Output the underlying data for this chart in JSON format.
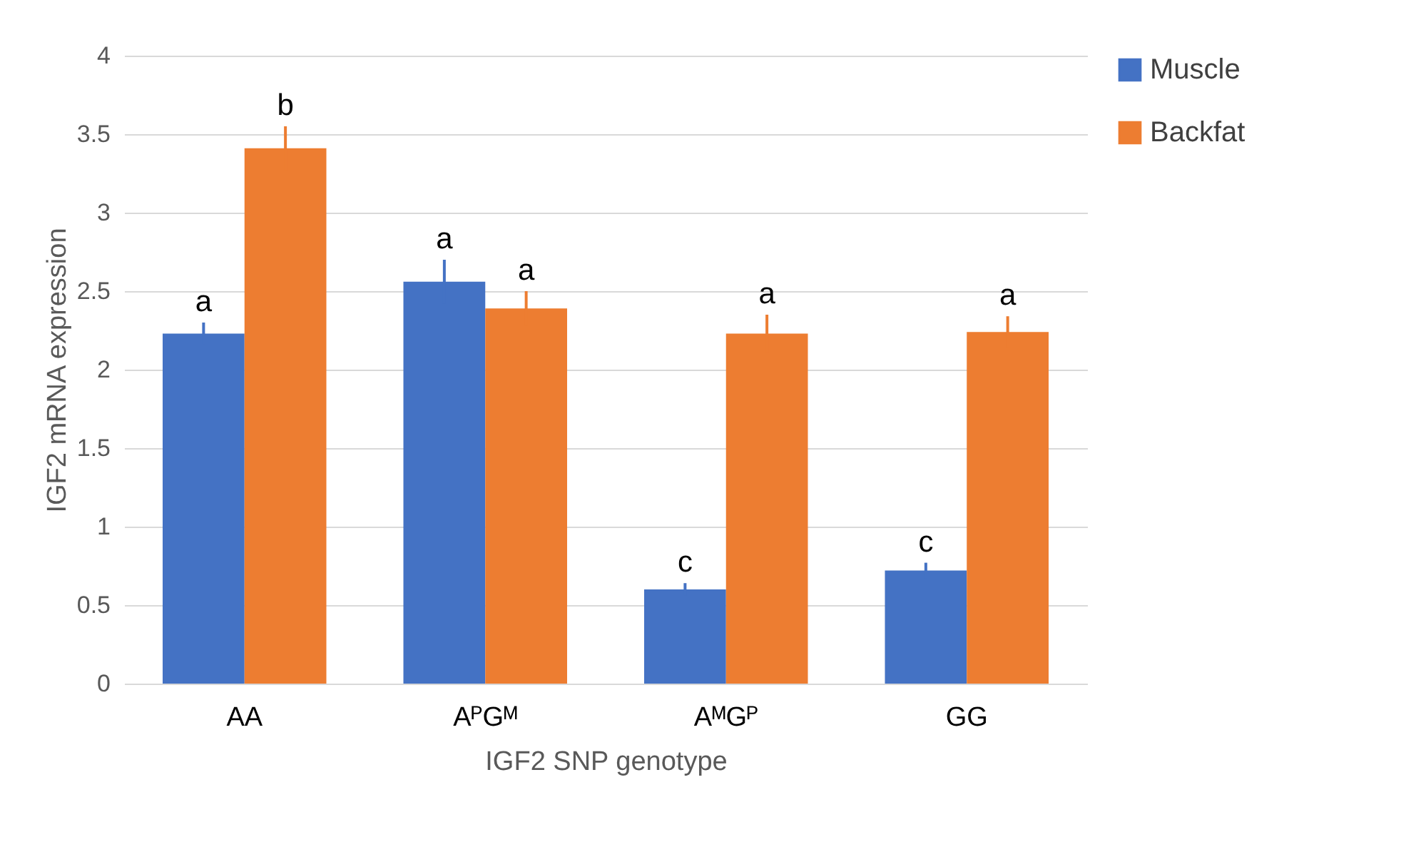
{
  "chart_data": {
    "type": "bar",
    "xlabel": "IGF2 SNP genotype",
    "ylabel": "IGF2 mRNA expression",
    "categories": [
      "AA",
      "AᴾGᴹ",
      "AᴹGᴾ",
      "GG"
    ],
    "series": [
      {
        "name": "Muscle",
        "color": "#4472c4",
        "values": [
          2.23,
          2.56,
          0.6,
          0.72
        ],
        "errors": [
          0.07,
          0.14,
          0.04,
          0.05
        ],
        "value_labels": [
          "a",
          "a",
          "c",
          "c"
        ]
      },
      {
        "name": "Backfat",
        "color": "#ed7d31",
        "values": [
          3.41,
          2.39,
          2.23,
          2.24
        ],
        "errors": [
          0.14,
          0.11,
          0.12,
          0.1
        ],
        "value_labels": [
          "b",
          "a",
          "a",
          "a"
        ]
      }
    ],
    "ylim": [
      0,
      4
    ],
    "yticks": [
      0,
      0.5,
      1,
      1.5,
      2,
      2.5,
      3,
      3.5,
      4
    ],
    "grid": "y",
    "legend": "right"
  }
}
